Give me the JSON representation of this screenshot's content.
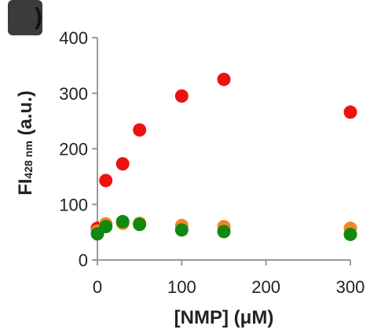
{
  "chart_data": {
    "type": "scatter",
    "panel_label": ")",
    "xlabel": "[NMP] (μM)",
    "ylabel": {
      "main": "FI",
      "subscript": "428 nm",
      "suffix": " (a.u.)"
    },
    "xlim": [
      0,
      300
    ],
    "ylim": [
      0,
      400
    ],
    "xticks": [
      0,
      100,
      200,
      300
    ],
    "yticks": [
      0,
      100,
      200,
      300,
      400
    ],
    "grid": false,
    "legend": "none",
    "series": [
      {
        "color": "#ee1111",
        "x": [
          0,
          10,
          30,
          50,
          100,
          150,
          300
        ],
        "y": [
          57,
          143,
          173,
          234,
          295,
          325,
          266
        ]
      },
      {
        "color": "#ee8822",
        "x": [
          0,
          10,
          30,
          50,
          100,
          150,
          300
        ],
        "y": [
          52,
          65,
          66,
          66,
          62,
          60,
          57
        ]
      },
      {
        "color": "#118811",
        "x": [
          0,
          10,
          30,
          50,
          100,
          150,
          300
        ],
        "y": [
          47,
          60,
          69,
          64,
          54,
          51,
          46
        ]
      }
    ]
  }
}
